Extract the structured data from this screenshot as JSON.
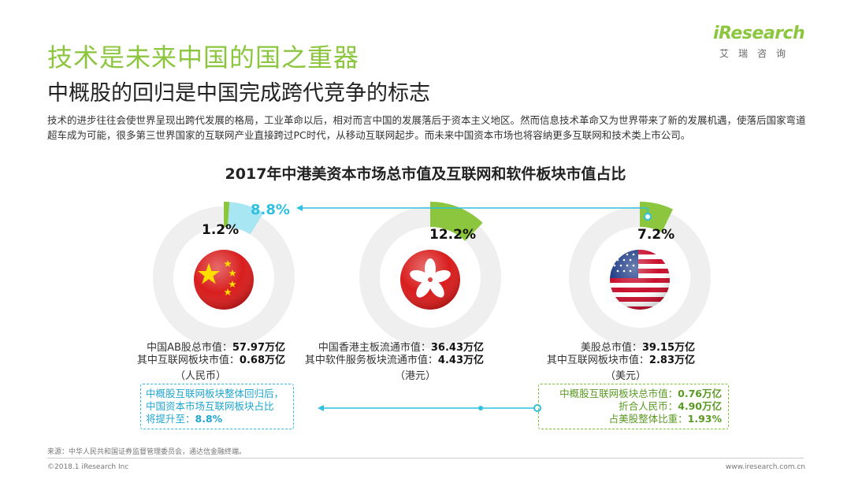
{
  "header": {
    "title": "技术是未来中国的国之重器",
    "subtitle": "中概股的回归是中国完成跨代竞争的标志",
    "description": "技术的进步往往会使世界呈现出跨代发展的格局，工业革命以后，相对而言中国的发展落后于资本主义地区。然而信息技术革命又为世界带来了新的发展机遇，使落后国家弯道超车成为可能，很多第三世界国家的互联网产业直接跨过PC时代，从移动互联网起步。而未来中国资本市场也将容纳更多互联网和技术类上市公司。"
  },
  "logo": {
    "word": "iResearch",
    "cn": "艾瑞咨询"
  },
  "chart_data": {
    "type": "pie",
    "title": "2017年中港美资本市场总市值及互联网和软件板块市值占比",
    "markets": [
      {
        "flag": "china-flag",
        "share_label": "1.2%",
        "share": 1.2,
        "projected_label": "8.8%",
        "projected_share": 8.8,
        "line1_label": "中国AB股总市值：",
        "line1_value": "57.97万亿",
        "line2_label": "其中互联网板块市值：",
        "line2_value": "0.68万亿",
        "unit": "（人民币）"
      },
      {
        "flag": "hong-kong-flag",
        "share_label": "12.2%",
        "share": 12.2,
        "line1_label": "中国香港主板流通市值：",
        "line1_value": "36.43万亿",
        "line2_label": "其中软件服务板块流通市值：",
        "line2_value": "4.43万亿",
        "unit": "（港元）"
      },
      {
        "flag": "usa-flag",
        "share_label": "7.2%",
        "share": 7.2,
        "line1_label": "美股总市值：",
        "line1_value": "39.15万亿",
        "line2_label": "其中互联网板块市值：",
        "line2_value": "2.83万亿",
        "unit": "（美元）"
      }
    ]
  },
  "callouts": {
    "left": {
      "line1": "中概股互联网板块整体回归后，",
      "line2": "中国资本市场互联网板块占比",
      "line3_label": "将提升至：",
      "line3_value": "8.8%"
    },
    "right": {
      "line1_label": "中概股互联网板块总市值：",
      "line1_value": "0.76万亿",
      "line2_label": "折合人民币：",
      "line2_value": "4.90万亿",
      "line3_label": "占美股整体比重：",
      "line3_value": "1.93%"
    }
  },
  "footer": {
    "source": "来源：中华人民共和国证券监督管理委员会，通达信金融终端。",
    "copyright": "©2018.1 iResearch Inc",
    "url": "www.iresearch.com.cn"
  },
  "colors": {
    "brand_green": "#8cc63f",
    "accent_blue": "#2fc0e0",
    "ring_gray": "#efefef"
  }
}
